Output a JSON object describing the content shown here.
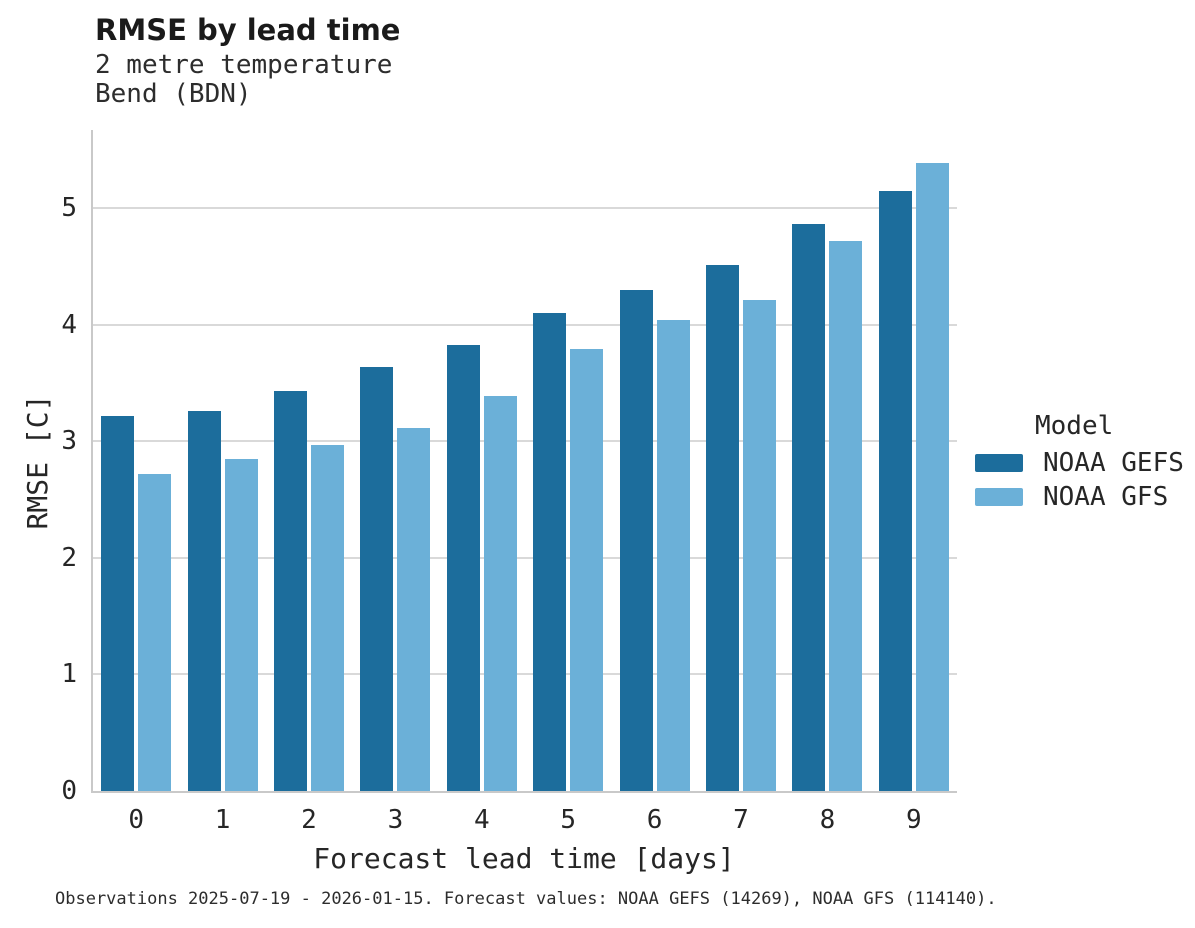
{
  "title": "RMSE by lead time",
  "subtitle1": "2 metre temperature",
  "subtitle2": "Bend (BDN)",
  "caption": "Observations 2025-07-19 - 2026-01-15. Forecast values: NOAA GEFS (14269), NOAA GFS (114140).",
  "legend": {
    "title": "Model",
    "entries": [
      {
        "label": "NOAA GEFS",
        "color": "#1C6D9C"
      },
      {
        "label": "NOAA GFS",
        "color": "#6BB0D8"
      }
    ]
  },
  "chart_data": {
    "type": "bar",
    "title": "RMSE by lead time",
    "subtitle": "2 metre temperature, Bend (BDN)",
    "xlabel": "Forecast lead time [days]",
    "ylabel": "RMSE [C]",
    "categories": [
      "0",
      "1",
      "2",
      "3",
      "4",
      "5",
      "6",
      "7",
      "8",
      "9"
    ],
    "series": [
      {
        "name": "NOAA GEFS",
        "color": "#1C6D9C",
        "values": [
          3.22,
          3.26,
          3.43,
          3.64,
          3.83,
          4.1,
          4.3,
          4.51,
          4.86,
          5.15
        ]
      },
      {
        "name": "NOAA GFS",
        "color": "#6BB0D8",
        "values": [
          2.72,
          2.85,
          2.97,
          3.11,
          3.39,
          3.79,
          4.04,
          4.21,
          4.72,
          5.39
        ]
      }
    ],
    "ylim": [
      0,
      5.67
    ],
    "yticks": [
      0,
      1,
      2,
      3,
      4,
      5
    ],
    "grid": true,
    "legend_position": "right"
  }
}
